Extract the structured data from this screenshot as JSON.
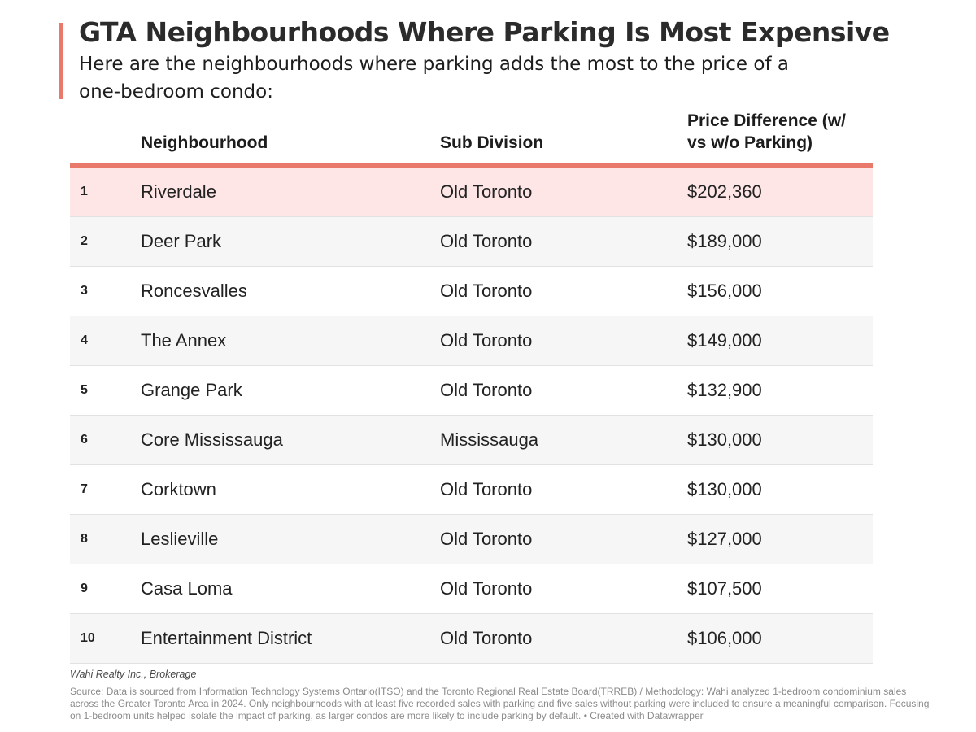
{
  "header": {
    "title": "GTA Neighbourhoods Where Parking Is Most Expensive",
    "subtitle": "Here are the neighbourhoods where parking adds the most to the price of a one-bedroom condo:",
    "accent_color": "#e8796b"
  },
  "chart_data": {
    "type": "table",
    "columns": [
      "",
      "Neighbourhood",
      "Sub Division",
      "Price Difference (w/ vs w/o Parking)"
    ],
    "rows": [
      {
        "rank": "1",
        "neighbourhood": "Riverdale",
        "subdivision": "Old Toronto",
        "price": "$202,360"
      },
      {
        "rank": "2",
        "neighbourhood": "Deer Park",
        "subdivision": "Old Toronto",
        "price": "$189,000"
      },
      {
        "rank": "3",
        "neighbourhood": "Roncesvalles",
        "subdivision": "Old Toronto",
        "price": "$156,000"
      },
      {
        "rank": "4",
        "neighbourhood": "The Annex",
        "subdivision": "Old Toronto",
        "price": "$149,000"
      },
      {
        "rank": "5",
        "neighbourhood": "Grange Park",
        "subdivision": "Old Toronto",
        "price": "$132,900"
      },
      {
        "rank": "6",
        "neighbourhood": "Core Mississauga",
        "subdivision": "Mississauga",
        "price": "$130,000"
      },
      {
        "rank": "7",
        "neighbourhood": "Corktown",
        "subdivision": "Old Toronto",
        "price": "$130,000"
      },
      {
        "rank": "8",
        "neighbourhood": "Leslieville",
        "subdivision": "Old Toronto",
        "price": "$127,000"
      },
      {
        "rank": "9",
        "neighbourhood": "Casa Loma",
        "subdivision": "Old Toronto",
        "price": "$107,500"
      },
      {
        "rank": "10",
        "neighbourhood": "Entertainment District",
        "subdivision": "Old Toronto",
        "price": "$106,000"
      }
    ],
    "highlight_row": 0,
    "highlight_color": "#fde6e5"
  },
  "footer": {
    "byline": "Wahi Realty Inc., Brokerage",
    "source": "Source: Data is sourced from Information Technology Systems Ontario(ITSO) and the Toronto Regional Real Estate Board(TRREB) / Methodology: Wahi analyzed 1-bedroom condominium sales across the Greater Toronto Area in 2024. Only neighbourhoods with at least five recorded sales with parking and five sales without parking were included to ensure a meaningful comparison. Focusing on 1-bedroom units helped isolate the impact of parking, as larger condos are more likely to include parking by default. • Created with Datawrapper"
  }
}
